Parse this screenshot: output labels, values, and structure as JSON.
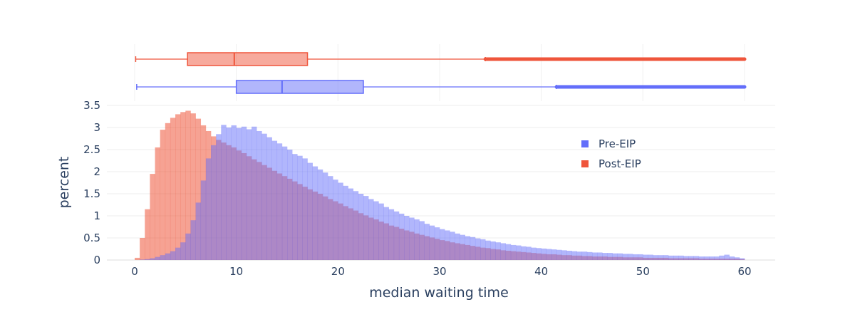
{
  "chart_data": {
    "type": "bar",
    "subtype": "overlaid-histogram-with-marginal-boxplots",
    "xlabel": "median waiting time",
    "ylabel": "percent",
    "xlim": [
      0,
      60
    ],
    "ylim": [
      0,
      3.5
    ],
    "xticks": [
      0,
      10,
      20,
      30,
      40,
      50,
      60
    ],
    "yticks": [
      0,
      0.5,
      1,
      1.5,
      2,
      2.5,
      3,
      3.5
    ],
    "xtick_labels": [
      "0",
      "10",
      "20",
      "30",
      "40",
      "50",
      "60"
    ],
    "ytick_labels": [
      "0",
      "0.5",
      "1",
      "1.5",
      "2",
      "2.5",
      "3",
      "3.5"
    ],
    "grid": true,
    "legend_position": "right",
    "bin_width": 0.5,
    "series": [
      {
        "name": "Pre-EIP",
        "color": "#636efa",
        "histogram": [
          [
            0.5,
            0.01
          ],
          [
            1.0,
            0.02
          ],
          [
            1.5,
            0.04
          ],
          [
            2.0,
            0.07
          ],
          [
            2.5,
            0.11
          ],
          [
            3.0,
            0.15
          ],
          [
            3.5,
            0.2
          ],
          [
            4.0,
            0.28
          ],
          [
            4.5,
            0.4
          ],
          [
            5.0,
            0.6
          ],
          [
            5.5,
            0.9
          ],
          [
            6.0,
            1.3
          ],
          [
            6.5,
            1.8
          ],
          [
            7.0,
            2.3
          ],
          [
            7.5,
            2.6
          ],
          [
            8.0,
            2.85
          ],
          [
            8.5,
            3.06
          ],
          [
            9.0,
            3.0
          ],
          [
            9.5,
            3.05
          ],
          [
            10.0,
            2.99
          ],
          [
            10.5,
            3.02
          ],
          [
            11.0,
            2.96
          ],
          [
            11.5,
            3.02
          ],
          [
            12.0,
            2.92
          ],
          [
            12.5,
            2.86
          ],
          [
            13.0,
            2.78
          ],
          [
            13.5,
            2.7
          ],
          [
            14.0,
            2.64
          ],
          [
            14.5,
            2.57
          ],
          [
            15.0,
            2.5
          ],
          [
            15.5,
            2.4
          ],
          [
            16.0,
            2.36
          ],
          [
            16.5,
            2.3
          ],
          [
            17.0,
            2.2
          ],
          [
            17.5,
            2.12
          ],
          [
            18.0,
            2.05
          ],
          [
            18.5,
            1.98
          ],
          [
            19.0,
            1.9
          ],
          [
            19.5,
            1.82
          ],
          [
            20.0,
            1.75
          ],
          [
            20.5,
            1.68
          ],
          [
            21.0,
            1.62
          ],
          [
            21.5,
            1.56
          ],
          [
            22.0,
            1.5
          ],
          [
            22.5,
            1.45
          ],
          [
            23.0,
            1.38
          ],
          [
            23.5,
            1.33
          ],
          [
            24.0,
            1.28
          ],
          [
            24.5,
            1.2
          ],
          [
            25.0,
            1.15
          ],
          [
            25.5,
            1.1
          ],
          [
            26.0,
            1.05
          ],
          [
            26.5,
            1.0
          ],
          [
            27.0,
            0.96
          ],
          [
            27.5,
            0.92
          ],
          [
            28.0,
            0.88
          ],
          [
            28.5,
            0.82
          ],
          [
            29.0,
            0.78
          ],
          [
            29.5,
            0.74
          ],
          [
            30.0,
            0.7
          ],
          [
            30.5,
            0.67
          ],
          [
            31.0,
            0.64
          ],
          [
            31.5,
            0.6
          ],
          [
            32.0,
            0.57
          ],
          [
            32.5,
            0.54
          ],
          [
            33.0,
            0.52
          ],
          [
            33.5,
            0.49
          ],
          [
            34.0,
            0.47
          ],
          [
            34.5,
            0.44
          ],
          [
            35.0,
            0.42
          ],
          [
            35.5,
            0.4
          ],
          [
            36.0,
            0.38
          ],
          [
            36.5,
            0.36
          ],
          [
            37.0,
            0.34
          ],
          [
            37.5,
            0.33
          ],
          [
            38.0,
            0.31
          ],
          [
            38.5,
            0.3
          ],
          [
            39.0,
            0.28
          ],
          [
            39.5,
            0.27
          ],
          [
            40.0,
            0.26
          ],
          [
            40.5,
            0.25
          ],
          [
            41.0,
            0.24
          ],
          [
            41.5,
            0.23
          ],
          [
            42.0,
            0.22
          ],
          [
            42.5,
            0.21
          ],
          [
            43.0,
            0.2
          ],
          [
            43.5,
            0.19
          ],
          [
            44.0,
            0.19
          ],
          [
            44.5,
            0.18
          ],
          [
            45.0,
            0.17
          ],
          [
            45.5,
            0.17
          ],
          [
            46.0,
            0.16
          ],
          [
            46.5,
            0.16
          ],
          [
            47.0,
            0.15
          ],
          [
            47.5,
            0.15
          ],
          [
            48.0,
            0.14
          ],
          [
            48.5,
            0.14
          ],
          [
            49.0,
            0.13
          ],
          [
            49.5,
            0.13
          ],
          [
            50.0,
            0.12
          ],
          [
            50.5,
            0.12
          ],
          [
            51.0,
            0.11
          ],
          [
            51.5,
            0.11
          ],
          [
            52.0,
            0.11
          ],
          [
            52.5,
            0.1
          ],
          [
            53.0,
            0.1
          ],
          [
            53.5,
            0.1
          ],
          [
            54.0,
            0.09
          ],
          [
            54.5,
            0.09
          ],
          [
            55.0,
            0.09
          ],
          [
            55.5,
            0.08
          ],
          [
            56.0,
            0.08
          ],
          [
            56.5,
            0.08
          ],
          [
            57.0,
            0.08
          ],
          [
            57.5,
            0.1
          ],
          [
            58.0,
            0.12
          ],
          [
            58.5,
            0.08
          ],
          [
            59.0,
            0.06
          ],
          [
            59.5,
            0.04
          ]
        ],
        "box": {
          "min": 0.2,
          "q1": 10,
          "median": 14.5,
          "q3": 22.5,
          "upper_fence": 41.5,
          "outliers_to": 60
        }
      },
      {
        "name": "Post-EIP",
        "color": "#ef553b",
        "histogram": [
          [
            0.0,
            0.05
          ],
          [
            0.5,
            0.5
          ],
          [
            1.0,
            1.15
          ],
          [
            1.5,
            1.95
          ],
          [
            2.0,
            2.55
          ],
          [
            2.5,
            2.95
          ],
          [
            3.0,
            3.1
          ],
          [
            3.5,
            3.22
          ],
          [
            4.0,
            3.3
          ],
          [
            4.5,
            3.35
          ],
          [
            5.0,
            3.38
          ],
          [
            5.5,
            3.32
          ],
          [
            6.0,
            3.2
          ],
          [
            6.5,
            3.05
          ],
          [
            7.0,
            2.92
          ],
          [
            7.5,
            2.8
          ],
          [
            8.0,
            2.72
          ],
          [
            8.5,
            2.66
          ],
          [
            9.0,
            2.6
          ],
          [
            9.5,
            2.55
          ],
          [
            10.0,
            2.48
          ],
          [
            10.5,
            2.42
          ],
          [
            11.0,
            2.35
          ],
          [
            11.5,
            2.28
          ],
          [
            12.0,
            2.22
          ],
          [
            12.5,
            2.15
          ],
          [
            13.0,
            2.09
          ],
          [
            13.5,
            2.02
          ],
          [
            14.0,
            1.96
          ],
          [
            14.5,
            1.9
          ],
          [
            15.0,
            1.84
          ],
          [
            15.5,
            1.78
          ],
          [
            16.0,
            1.72
          ],
          [
            16.5,
            1.66
          ],
          [
            17.0,
            1.6
          ],
          [
            17.5,
            1.55
          ],
          [
            18.0,
            1.5
          ],
          [
            18.5,
            1.44
          ],
          [
            19.0,
            1.38
          ],
          [
            19.5,
            1.33
          ],
          [
            20.0,
            1.28
          ],
          [
            20.5,
            1.22
          ],
          [
            21.0,
            1.17
          ],
          [
            21.5,
            1.12
          ],
          [
            22.0,
            1.06
          ],
          [
            22.5,
            1.01
          ],
          [
            23.0,
            0.96
          ],
          [
            23.5,
            0.92
          ],
          [
            24.0,
            0.87
          ],
          [
            24.5,
            0.83
          ],
          [
            25.0,
            0.78
          ],
          [
            25.5,
            0.75
          ],
          [
            26.0,
            0.71
          ],
          [
            26.5,
            0.67
          ],
          [
            27.0,
            0.64
          ],
          [
            27.5,
            0.6
          ],
          [
            28.0,
            0.57
          ],
          [
            28.5,
            0.54
          ],
          [
            29.0,
            0.51
          ],
          [
            29.5,
            0.48
          ],
          [
            30.0,
            0.45
          ],
          [
            30.5,
            0.43
          ],
          [
            31.0,
            0.4
          ],
          [
            31.5,
            0.38
          ],
          [
            32.0,
            0.36
          ],
          [
            32.5,
            0.34
          ],
          [
            33.0,
            0.32
          ],
          [
            33.5,
            0.3
          ],
          [
            34.0,
            0.28
          ],
          [
            34.5,
            0.27
          ],
          [
            35.0,
            0.25
          ],
          [
            35.5,
            0.24
          ],
          [
            36.0,
            0.22
          ],
          [
            36.5,
            0.21
          ],
          [
            37.0,
            0.2
          ],
          [
            37.5,
            0.19
          ],
          [
            38.0,
            0.18
          ],
          [
            38.5,
            0.17
          ],
          [
            39.0,
            0.16
          ],
          [
            39.5,
            0.15
          ],
          [
            40.0,
            0.14
          ],
          [
            40.5,
            0.13
          ],
          [
            41.0,
            0.13
          ],
          [
            41.5,
            0.12
          ],
          [
            42.0,
            0.11
          ],
          [
            42.5,
            0.11
          ],
          [
            43.0,
            0.1
          ],
          [
            43.5,
            0.1
          ],
          [
            44.0,
            0.09
          ],
          [
            44.5,
            0.09
          ],
          [
            45.0,
            0.08
          ],
          [
            45.5,
            0.08
          ],
          [
            46.0,
            0.08
          ],
          [
            46.5,
            0.07
          ],
          [
            47.0,
            0.07
          ],
          [
            47.5,
            0.07
          ],
          [
            48.0,
            0.06
          ],
          [
            48.5,
            0.06
          ],
          [
            49.0,
            0.06
          ],
          [
            49.5,
            0.06
          ],
          [
            50.0,
            0.05
          ],
          [
            50.5,
            0.05
          ],
          [
            51.0,
            0.05
          ],
          [
            51.5,
            0.05
          ],
          [
            52.0,
            0.05
          ],
          [
            52.5,
            0.04
          ],
          [
            53.0,
            0.04
          ],
          [
            53.5,
            0.04
          ],
          [
            54.0,
            0.04
          ],
          [
            54.5,
            0.04
          ],
          [
            55.0,
            0.04
          ],
          [
            55.5,
            0.03
          ],
          [
            56.0,
            0.03
          ],
          [
            56.5,
            0.03
          ],
          [
            57.0,
            0.03
          ],
          [
            57.5,
            0.03
          ],
          [
            58.0,
            0.03
          ],
          [
            58.5,
            0.03
          ],
          [
            59.0,
            0.03
          ],
          [
            59.5,
            0.02
          ]
        ],
        "box": {
          "min": 0.1,
          "q1": 5.2,
          "median": 9.8,
          "q3": 17,
          "upper_fence": 34.5,
          "outliers_to": 60
        }
      }
    ]
  }
}
